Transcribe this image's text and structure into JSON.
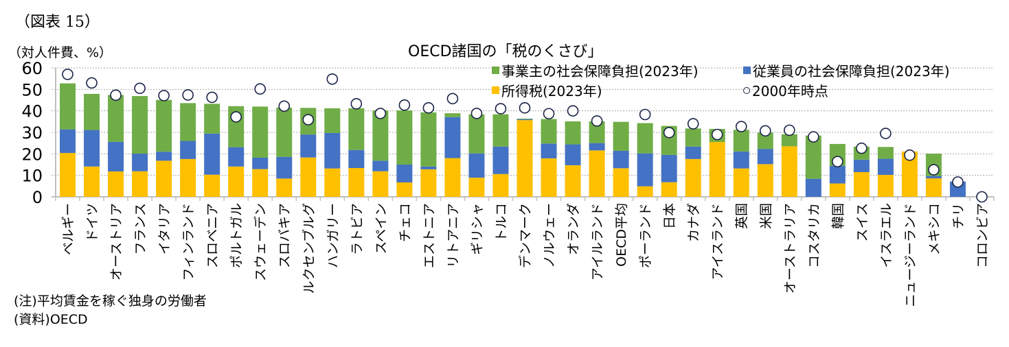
{
  "figure_label": "（図表 15）",
  "notes": {
    "note": "(注)平均賃金を稼ぐ独身の労働者",
    "source": "(資料)OECD"
  },
  "colors": {
    "employer": "#70ad47",
    "employee": "#4472c4",
    "income_tax": "#ffc000",
    "marker_stroke": "#1a2346",
    "grid": "#a6a6a6",
    "axis": "#bfbfbf"
  },
  "chart_data": {
    "type": "bar",
    "stacked": true,
    "title": "OECD諸国の「税のくさび」",
    "ylabel": "（対人件費、%）",
    "xlabel": "",
    "ylim": [
      0,
      60
    ],
    "yticks": [
      0,
      10,
      20,
      30,
      40,
      50,
      60
    ],
    "ytick_labels": [
      "0",
      "10",
      "20",
      "30",
      "40",
      "50",
      "60"
    ],
    "grid": true,
    "legend_position": "top-right",
    "categories": [
      "ベルギー",
      "ドイツ",
      "オーストリア",
      "フランス",
      "イタリア",
      "フィンランド",
      "スロベニア",
      "ポルトガル",
      "スウェーデン",
      "スロバキア",
      "ルクセンブルグ",
      "ハンガリー",
      "ラトビア",
      "スペイン",
      "チェコ",
      "エストニア",
      "リトアニア",
      "ギリシャ",
      "トルコ",
      "デンマーク",
      "ノルウェー",
      "オランダ",
      "アイルランド",
      "OECD平均",
      "ポーランド",
      "日本",
      "カナダ",
      "アイスランド",
      "英国",
      "米国",
      "オーストラリア",
      "コスタリカ",
      "韓国",
      "スイス",
      "イスラエル",
      "ニュージーランド",
      "メキシコ",
      "チリ",
      "コロンビア"
    ],
    "series": [
      {
        "name": "所得税(2023年)",
        "key": "income_tax",
        "values": [
          20.4,
          14.1,
          11.8,
          11.9,
          16.8,
          17.6,
          10.3,
          14.1,
          12.9,
          8.5,
          18.3,
          13.2,
          13.4,
          11.9,
          6.7,
          12.8,
          18.0,
          8.9,
          10.6,
          35.7,
          17.9,
          14.7,
          21.6,
          13.3,
          4.9,
          6.8,
          17.6,
          25.5,
          13.2,
          15.2,
          23.5,
          0.0,
          6.2,
          11.5,
          10.2,
          21.1,
          8.6,
          0.0,
          0.0
        ]
      },
      {
        "name": "従業員の社会保障負担(2023年)",
        "key": "employee",
        "values": [
          11.0,
          17.0,
          13.8,
          8.2,
          4.2,
          8.4,
          19.1,
          9.0,
          5.3,
          10.1,
          10.7,
          16.5,
          8.4,
          4.9,
          8.3,
          1.3,
          19.1,
          11.3,
          12.8,
          0.4,
          6.9,
          9.7,
          3.4,
          8.1,
          15.3,
          12.7,
          5.8,
          0.0,
          7.9,
          7.1,
          0.0,
          8.4,
          8.2,
          5.8,
          7.5,
          0.0,
          1.1,
          7.1,
          0.0
        ]
      },
      {
        "name": "事業主の社会保障負担(2023年)",
        "key": "employer",
        "values": [
          21.4,
          16.8,
          21.8,
          26.8,
          24.1,
          17.6,
          13.9,
          19.1,
          23.8,
          22.9,
          12.4,
          11.5,
          19.4,
          23.4,
          25.2,
          25.2,
          1.8,
          18.2,
          15.0,
          0.3,
          11.4,
          10.7,
          10.1,
          13.5,
          14.1,
          13.5,
          8.4,
          6.1,
          10.1,
          7.6,
          5.6,
          20.1,
          10.2,
          6.1,
          5.5,
          0.0,
          10.4,
          0.0,
          0.0
        ]
      }
    ],
    "markers": {
      "name": "2000年時点",
      "values": [
        57.0,
        53.0,
        47.3,
        50.5,
        47.1,
        47.4,
        46.3,
        37.2,
        50.2,
        42.2,
        35.9,
        54.8,
        43.3,
        38.8,
        42.7,
        41.4,
        45.7,
        38.8,
        41.0,
        41.4,
        38.7,
        40.0,
        35.3,
        null,
        38.3,
        29.9,
        34.0,
        29.0,
        32.7,
        30.7,
        31.0,
        27.9,
        16.4,
        22.6,
        29.5,
        19.4,
        12.6,
        6.9,
        0.0
      ]
    },
    "legend": [
      {
        "label": "事業主の社会保障負担(2023年)",
        "key": "employer",
        "kind": "bar"
      },
      {
        "label": "従業員の社会保障負担(2023年)",
        "key": "employee",
        "kind": "bar"
      },
      {
        "label": "所得税(2023年)",
        "key": "income_tax",
        "kind": "bar"
      },
      {
        "label": "2000年時点",
        "key": "marker",
        "kind": "circle"
      }
    ]
  }
}
